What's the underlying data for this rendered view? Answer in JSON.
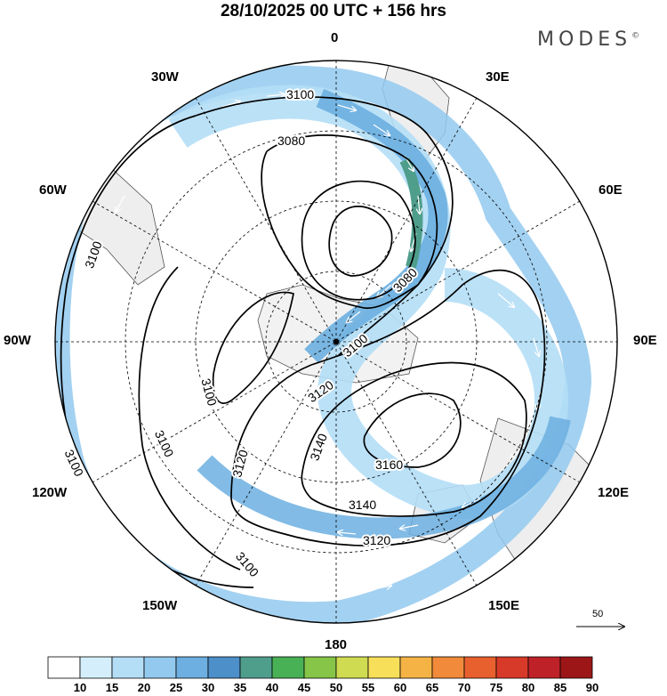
{
  "title": "28/10/2025  00 UTC  + 156 hrs",
  "brand": "MODES",
  "brand_mark": "©",
  "longitude_labels": [
    "0",
    "30E",
    "60E",
    "90E",
    "120E",
    "150E",
    "180",
    "150W",
    "120W",
    "90W",
    "60W",
    "30W"
  ],
  "contour_labels": [
    "3100",
    "3080",
    "3100",
    "3100",
    "3080",
    "3100",
    "3100",
    "3120",
    "3140",
    "3160",
    "3140",
    "3120",
    "3120",
    "3100",
    "3100"
  ],
  "reference_vector": {
    "label": "50"
  },
  "colorbar": {
    "labels": [
      "10",
      "15",
      "20",
      "25",
      "30",
      "35",
      "40",
      "45",
      "50",
      "55",
      "60",
      "65",
      "70",
      "75",
      "80",
      "85",
      "90"
    ],
    "colors": [
      "#ffffff",
      "#d4effb",
      "#b4def6",
      "#93c9ee",
      "#6cafe0",
      "#4c8fc9",
      "#4f9e8c",
      "#48b155",
      "#86c548",
      "#cfdb50",
      "#f8df5a",
      "#f5b345",
      "#f18a3a",
      "#e9602f",
      "#d83a2a",
      "#bf2128",
      "#9c1618"
    ]
  }
}
